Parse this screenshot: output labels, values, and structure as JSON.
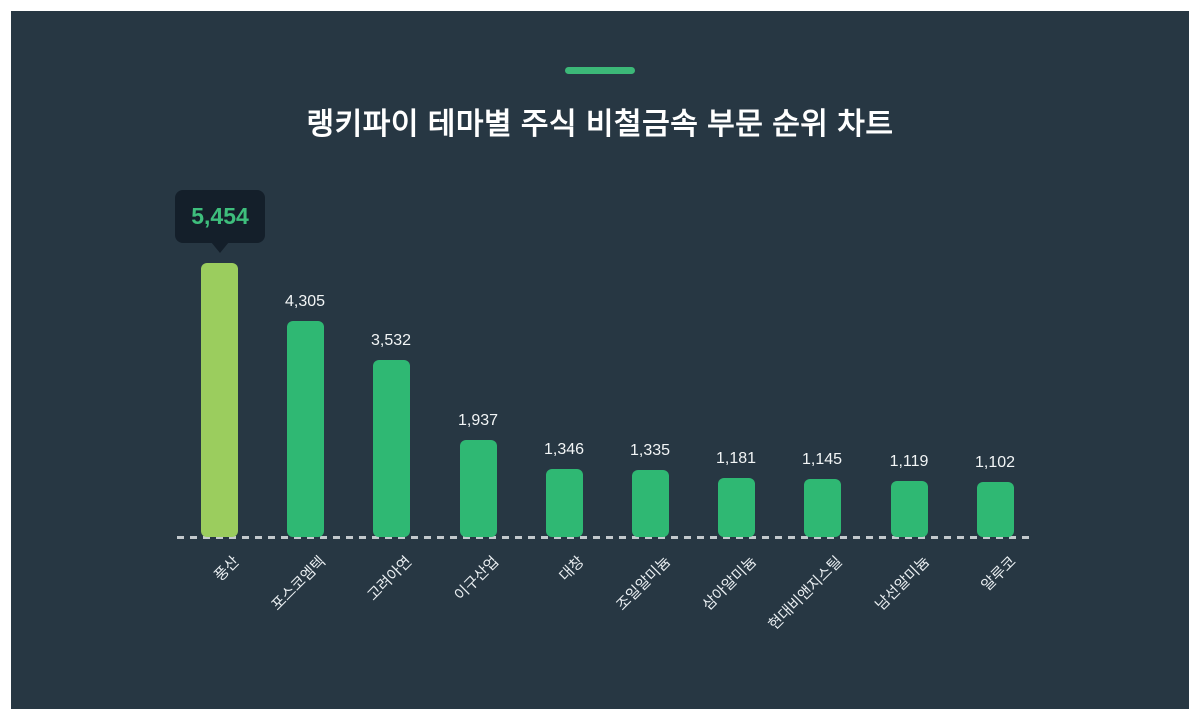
{
  "chart_data": {
    "type": "bar",
    "title": "랭키파이 테마별 주식 비철금속 부문 순위 차트",
    "xlabel": "",
    "ylabel": "",
    "categories": [
      "풍산",
      "포스코엠텍",
      "고려아연",
      "이구산업",
      "대창",
      "조일알미늄",
      "삼아알미늄",
      "현대비앤지스틸",
      "남선알미늄",
      "알루코"
    ],
    "values": [
      5454,
      4305,
      3532,
      1937,
      1346,
      1335,
      1181,
      1145,
      1119,
      1102
    ],
    "value_labels": [
      "5,454",
      "4,305",
      "3,532",
      "1,937",
      "1,346",
      "1,335",
      "1,181",
      "1,145",
      "1,119",
      "1,102"
    ],
    "ylim": [
      0,
      5454
    ],
    "grid": false,
    "legend": false,
    "baseline_style": "dashed",
    "category_label_rotation_deg": -45,
    "highlight": {
      "index": 0,
      "tooltip_label": "5,454"
    },
    "colors": {
      "background": "#273743",
      "frame": "#ffffff",
      "accent_dash": "#3cb878",
      "title_text": "#ffffff",
      "bar_default": "#2fb873",
      "bar_highlight": "#9bcd5e",
      "value_text": "#f2f5f6",
      "category_text": "#e9eef1",
      "baseline_dash": "#c3c9cd",
      "tooltip_bg": "#141f2a",
      "tooltip_text": "#3ebe7c"
    }
  }
}
